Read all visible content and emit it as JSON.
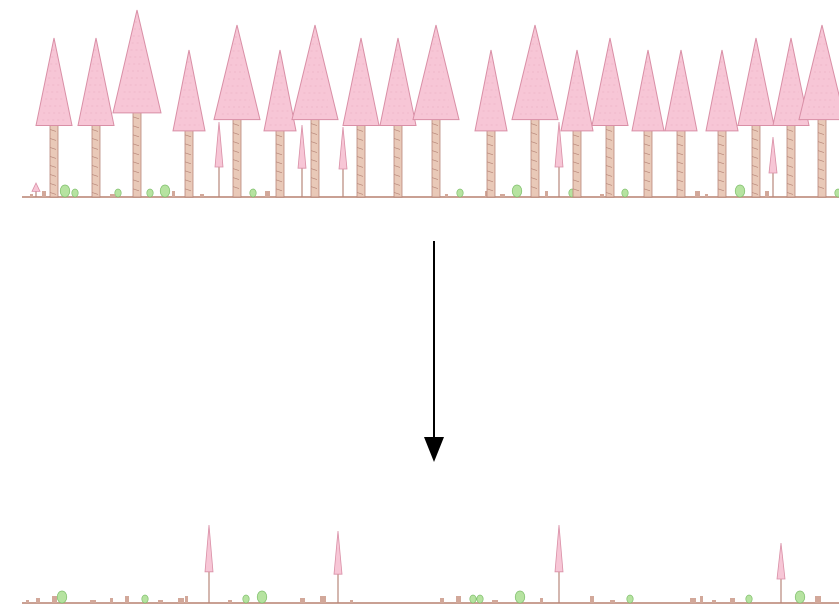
{
  "diagram": {
    "colors": {
      "foliage_fill": "#f7c6d6",
      "foliage_stroke": "#d98fa6",
      "foliage_texture": "#e8a9bd",
      "trunk_fill": "#e9c9b8",
      "trunk_stroke": "#b8877a",
      "ground": "#c9a093",
      "shrub_fill": "#b6e3a0",
      "shrub_stroke": "#7fbf6c",
      "debris": "#d2a89a",
      "arrow": "#000000"
    },
    "panels": {
      "before": {
        "tall_trees": [
          {
            "size": "medium"
          },
          {
            "size": "medium"
          },
          {
            "size": "tallest"
          },
          {
            "size": "short"
          },
          {
            "size": "tall"
          },
          {
            "size": "short"
          },
          {
            "size": "tall"
          },
          {
            "size": "medium"
          },
          {
            "size": "medium"
          },
          {
            "size": "tall"
          },
          {
            "size": "short"
          },
          {
            "size": "tall"
          },
          {
            "size": "short"
          },
          {
            "size": "medium"
          },
          {
            "size": "short"
          },
          {
            "size": "short"
          },
          {
            "size": "short"
          },
          {
            "size": "medium"
          },
          {
            "size": "medium"
          },
          {
            "size": "tall"
          }
        ],
        "saplings": 6,
        "shrubs": 12,
        "debris": 14
      },
      "after": {
        "tall_trees": [],
        "saplings": 4,
        "shrubs": 10,
        "debris": 24
      }
    },
    "arrow": {
      "direction": "down"
    }
  }
}
